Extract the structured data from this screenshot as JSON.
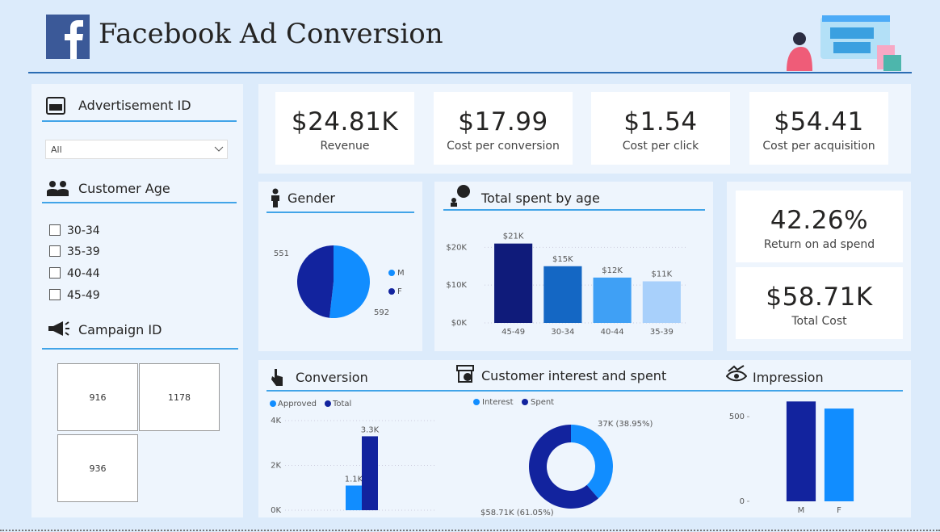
{
  "header": {
    "title": "Facebook Ad Conversion"
  },
  "filters": {
    "advertisement": {
      "title": "Advertisement ID",
      "selected": "All"
    },
    "age": {
      "title": "Customer Age",
      "options": [
        "30-34",
        "35-39",
        "40-44",
        "45-49"
      ]
    },
    "campaign": {
      "title": "Campaign ID",
      "options": [
        "916",
        "1178",
        "936"
      ]
    }
  },
  "kpis": [
    {
      "value": "$24.81K",
      "label": "Revenue"
    },
    {
      "value": "$17.99",
      "label": "Cost per conversion"
    },
    {
      "value": "$1.54",
      "label": "Cost per click"
    },
    {
      "value": "$54.41",
      "label": "Cost per acquisition"
    },
    {
      "value": "42.26%",
      "label": "Return on ad spend"
    },
    {
      "value": "$58.71K",
      "label": "Total Cost"
    }
  ],
  "chart_data": [
    {
      "type": "pie",
      "title": "Gender",
      "categories": [
        "M",
        "F"
      ],
      "values": [
        592,
        551
      ],
      "colors": [
        "#118DFF",
        "#12239E"
      ]
    },
    {
      "type": "bar",
      "title": "Total spent by age",
      "categories": [
        "45-49",
        "30-34",
        "40-44",
        "35-39"
      ],
      "values": [
        21000,
        15000,
        12000,
        11000
      ],
      "value_labels": [
        "$21K",
        "$15K",
        "$12K",
        "$11K"
      ],
      "colors": [
        "#0f1b7a",
        "#1467c4",
        "#3fa0f5",
        "#a8d0fb"
      ],
      "ylim": [
        0,
        22000
      ],
      "yticks": [
        {
          "value": 0,
          "label": "$0K"
        },
        {
          "value": 10000,
          "label": "$10K"
        },
        {
          "value": 20000,
          "label": "$20K"
        }
      ],
      "grid": true
    },
    {
      "type": "bar",
      "title": "Conversion",
      "categories": [
        null
      ],
      "series": [
        {
          "name": "Approved",
          "color": "#118DFF",
          "values": [
            1100
          ],
          "value_labels": [
            "1.1K"
          ]
        },
        {
          "name": "Total",
          "color": "#12239E",
          "values": [
            3300
          ],
          "value_labels": [
            "3.3K"
          ]
        }
      ],
      "ylim": [
        0,
        4000
      ],
      "yticks": [
        {
          "value": 0,
          "label": "0K"
        },
        {
          "value": 2000,
          "label": "2K"
        },
        {
          "value": 4000,
          "label": "4K"
        }
      ],
      "grid": true
    },
    {
      "type": "donut",
      "title": "Customer interest and spent",
      "categories": [
        "Interest",
        "Spent"
      ],
      "values": [
        37000,
        58710
      ],
      "value_labels": [
        "37K (38.95%)",
        "$58.71K (61.05%)"
      ],
      "colors": [
        "#118DFF",
        "#12239E"
      ]
    },
    {
      "type": "bar",
      "title": "Impression",
      "categories": [
        "M",
        "F"
      ],
      "values": [
        590,
        548
      ],
      "colors": [
        "#12239E",
        "#118DFF"
      ],
      "ylim": [
        0,
        620
      ],
      "yticks": [
        0,
        500
      ],
      "grid": false
    }
  ]
}
